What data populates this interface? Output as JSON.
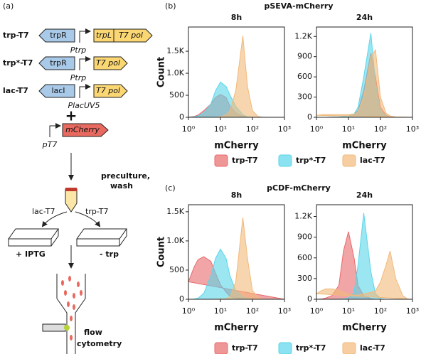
{
  "diagram": {
    "label": "(a)",
    "constructs": [
      {
        "name": "trp-T7",
        "repressor": "trpR",
        "promoter": "Ptrp",
        "genes": [
          "trpL",
          "T7 pol"
        ]
      },
      {
        "name": "trp*-T7",
        "repressor": "trpR",
        "promoter": "Ptrp",
        "genes": [
          "T7 pol"
        ]
      },
      {
        "name": "lac-T7",
        "repressor": "lacI",
        "promoter": "PlacUV5",
        "genes": [
          "T7 pol"
        ]
      }
    ],
    "plus": "+",
    "reporter": {
      "gene": "mCherry",
      "promoter": "pT7"
    },
    "step": [
      "preculture,",
      "wash"
    ],
    "branch_left": "lac-T7",
    "branch_right": "trp-T7",
    "condition_left": "+ IPTG",
    "condition_right": "- trp",
    "readout": [
      "flow",
      "cytometry"
    ]
  },
  "panels": [
    {
      "label": "(b)",
      "title": "pSEVA-mCherry"
    },
    {
      "label": "(c)",
      "title": "pCDF-mCherry"
    }
  ],
  "chart_data": [
    {
      "type": "area",
      "title": "8h",
      "xlabel": "mCherry",
      "ylabel": "Count",
      "xscale": "log",
      "xlim": [
        1,
        1000
      ],
      "xticks": [
        {
          "value": 1,
          "label": "10⁰"
        },
        {
          "value": 10,
          "label": "10¹"
        },
        {
          "value": 100,
          "label": "10²"
        },
        {
          "value": 1000,
          "label": "10³"
        }
      ],
      "ylim": [
        0,
        2050
      ],
      "yticks": [
        0,
        500,
        {
          "value": 1000,
          "label": "1.0K"
        },
        {
          "value": 1500,
          "label": "1.5K"
        }
      ],
      "x": [
        1,
        1.5,
        2,
        3,
        5,
        7,
        10,
        15,
        20,
        30,
        50,
        70,
        100,
        150,
        200,
        300,
        500,
        700,
        1000
      ],
      "series": [
        {
          "name": "trp-T7",
          "color": "#e8696b",
          "values": [
            0,
            20,
            50,
            150,
            300,
            450,
            520,
            450,
            250,
            100,
            20,
            5,
            0,
            0,
            0,
            0,
            0,
            0,
            0
          ]
        },
        {
          "name": "trp*-T7",
          "color": "#5ad6ea",
          "values": [
            0,
            10,
            30,
            100,
            300,
            600,
            800,
            700,
            500,
            250,
            60,
            10,
            0,
            0,
            0,
            0,
            0,
            0,
            0
          ]
        },
        {
          "name": "lac-T7",
          "color": "#f2b97a",
          "values": [
            0,
            0,
            0,
            0,
            0,
            2,
            10,
            50,
            150,
            600,
            1850,
            700,
            150,
            20,
            5,
            0,
            0,
            0,
            0
          ]
        }
      ]
    },
    {
      "type": "area",
      "title": "24h",
      "xlabel": "mCherry",
      "xscale": "log",
      "xlim": [
        1,
        1000
      ],
      "xticks": [
        {
          "value": 1,
          "label": "10⁰"
        },
        {
          "value": 10,
          "label": "10¹"
        },
        {
          "value": 100,
          "label": "10²"
        },
        {
          "value": 1000,
          "label": "10³"
        }
      ],
      "ylim": [
        0,
        1340
      ],
      "yticks": [
        0,
        300,
        600,
        900,
        {
          "value": 1200,
          "label": "1.2K"
        }
      ],
      "x": [
        1,
        1.5,
        2,
        3,
        5,
        7,
        10,
        15,
        20,
        30,
        50,
        70,
        100,
        150,
        200,
        300,
        500,
        700,
        1000
      ],
      "series": [
        {
          "name": "trp-T7",
          "color": "#e8696b",
          "values": [
            0,
            0,
            0,
            2,
            5,
            10,
            20,
            50,
            100,
            400,
            950,
            600,
            150,
            30,
            5,
            0,
            0,
            0,
            0
          ]
        },
        {
          "name": "trp*-T7",
          "color": "#5ad6ea",
          "values": [
            0,
            0,
            0,
            2,
            5,
            10,
            20,
            50,
            150,
            600,
            1250,
            500,
            100,
            20,
            5,
            0,
            0,
            0,
            0
          ]
        },
        {
          "name": "lac-T7",
          "color": "#f2b97a",
          "values": [
            30,
            40,
            40,
            40,
            40,
            40,
            40,
            50,
            80,
            300,
            900,
            1000,
            300,
            60,
            20,
            5,
            0,
            0,
            0
          ]
        }
      ]
    },
    {
      "type": "area",
      "title": "8h",
      "xlabel": "mCherry",
      "ylabel": "Count",
      "xscale": "log",
      "xlim": [
        1,
        1000
      ],
      "xticks": [
        {
          "value": 1,
          "label": "10⁰"
        },
        {
          "value": 10,
          "label": "10¹"
        },
        {
          "value": 100,
          "label": "10²"
        },
        {
          "value": 1000,
          "label": "10³"
        }
      ],
      "ylim": [
        0,
        1620
      ],
      "yticks": [
        0,
        500,
        {
          "value": 1000,
          "label": "1.0K"
        },
        {
          "value": 1500,
          "label": "1.5K"
        }
      ],
      "x": [
        1,
        1.5,
        2,
        3,
        5,
        7,
        10,
        15,
        20,
        30,
        50,
        70,
        100,
        150,
        200,
        300,
        500,
        700,
        1000
      ],
      "series": [
        {
          "name": "trp-T7",
          "color": "#e8696b",
          "values": [
            300,
            550,
            680,
            730,
            650,
            450,
            250,
            120,
            50,
            20,
            5,
            0,
            0,
            0,
            0,
            0,
            0,
            0,
            0
          ]
        },
        {
          "name": "trp*-T7",
          "color": "#5ad6ea",
          "values": [
            0,
            5,
            20,
            100,
            400,
            700,
            860,
            700,
            400,
            150,
            40,
            10,
            0,
            0,
            0,
            0,
            0,
            0,
            0
          ]
        },
        {
          "name": "lac-T7",
          "color": "#f2b97a",
          "values": [
            0,
            0,
            0,
            0,
            0,
            2,
            5,
            10,
            40,
            300,
            1400,
            700,
            150,
            30,
            5,
            0,
            0,
            0,
            0
          ]
        }
      ]
    },
    {
      "type": "area",
      "title": "24h",
      "xlabel": "mCherry",
      "xscale": "log",
      "xlim": [
        1,
        1000
      ],
      "xticks": [
        {
          "value": 1,
          "label": "10⁰"
        },
        {
          "value": 10,
          "label": "10¹"
        },
        {
          "value": 100,
          "label": "10²"
        },
        {
          "value": 1000,
          "label": "10³"
        }
      ],
      "ylim": [
        0,
        1370
      ],
      "yticks": [
        0,
        300,
        600,
        900,
        {
          "value": 1200,
          "label": "1.2K"
        }
      ],
      "x": [
        1,
        1.5,
        2,
        3,
        5,
        7,
        10,
        15,
        20,
        30,
        50,
        70,
        100,
        150,
        200,
        300,
        500,
        700,
        1000
      ],
      "series": [
        {
          "name": "trp-T7",
          "color": "#e8696b",
          "values": [
            0,
            5,
            20,
            50,
            200,
            700,
            980,
            600,
            200,
            50,
            10,
            0,
            0,
            0,
            0,
            0,
            0,
            0,
            0
          ]
        },
        {
          "name": "trp*-T7",
          "color": "#5ad6ea",
          "values": [
            0,
            0,
            0,
            0,
            2,
            5,
            20,
            100,
            500,
            1250,
            400,
            80,
            10,
            0,
            0,
            0,
            0,
            0,
            0
          ]
        },
        {
          "name": "lac-T7",
          "color": "#f2b97a",
          "values": [
            80,
            130,
            150,
            150,
            130,
            100,
            80,
            60,
            60,
            80,
            100,
            120,
            250,
            500,
            700,
            300,
            50,
            5,
            0
          ]
        }
      ]
    }
  ]
}
